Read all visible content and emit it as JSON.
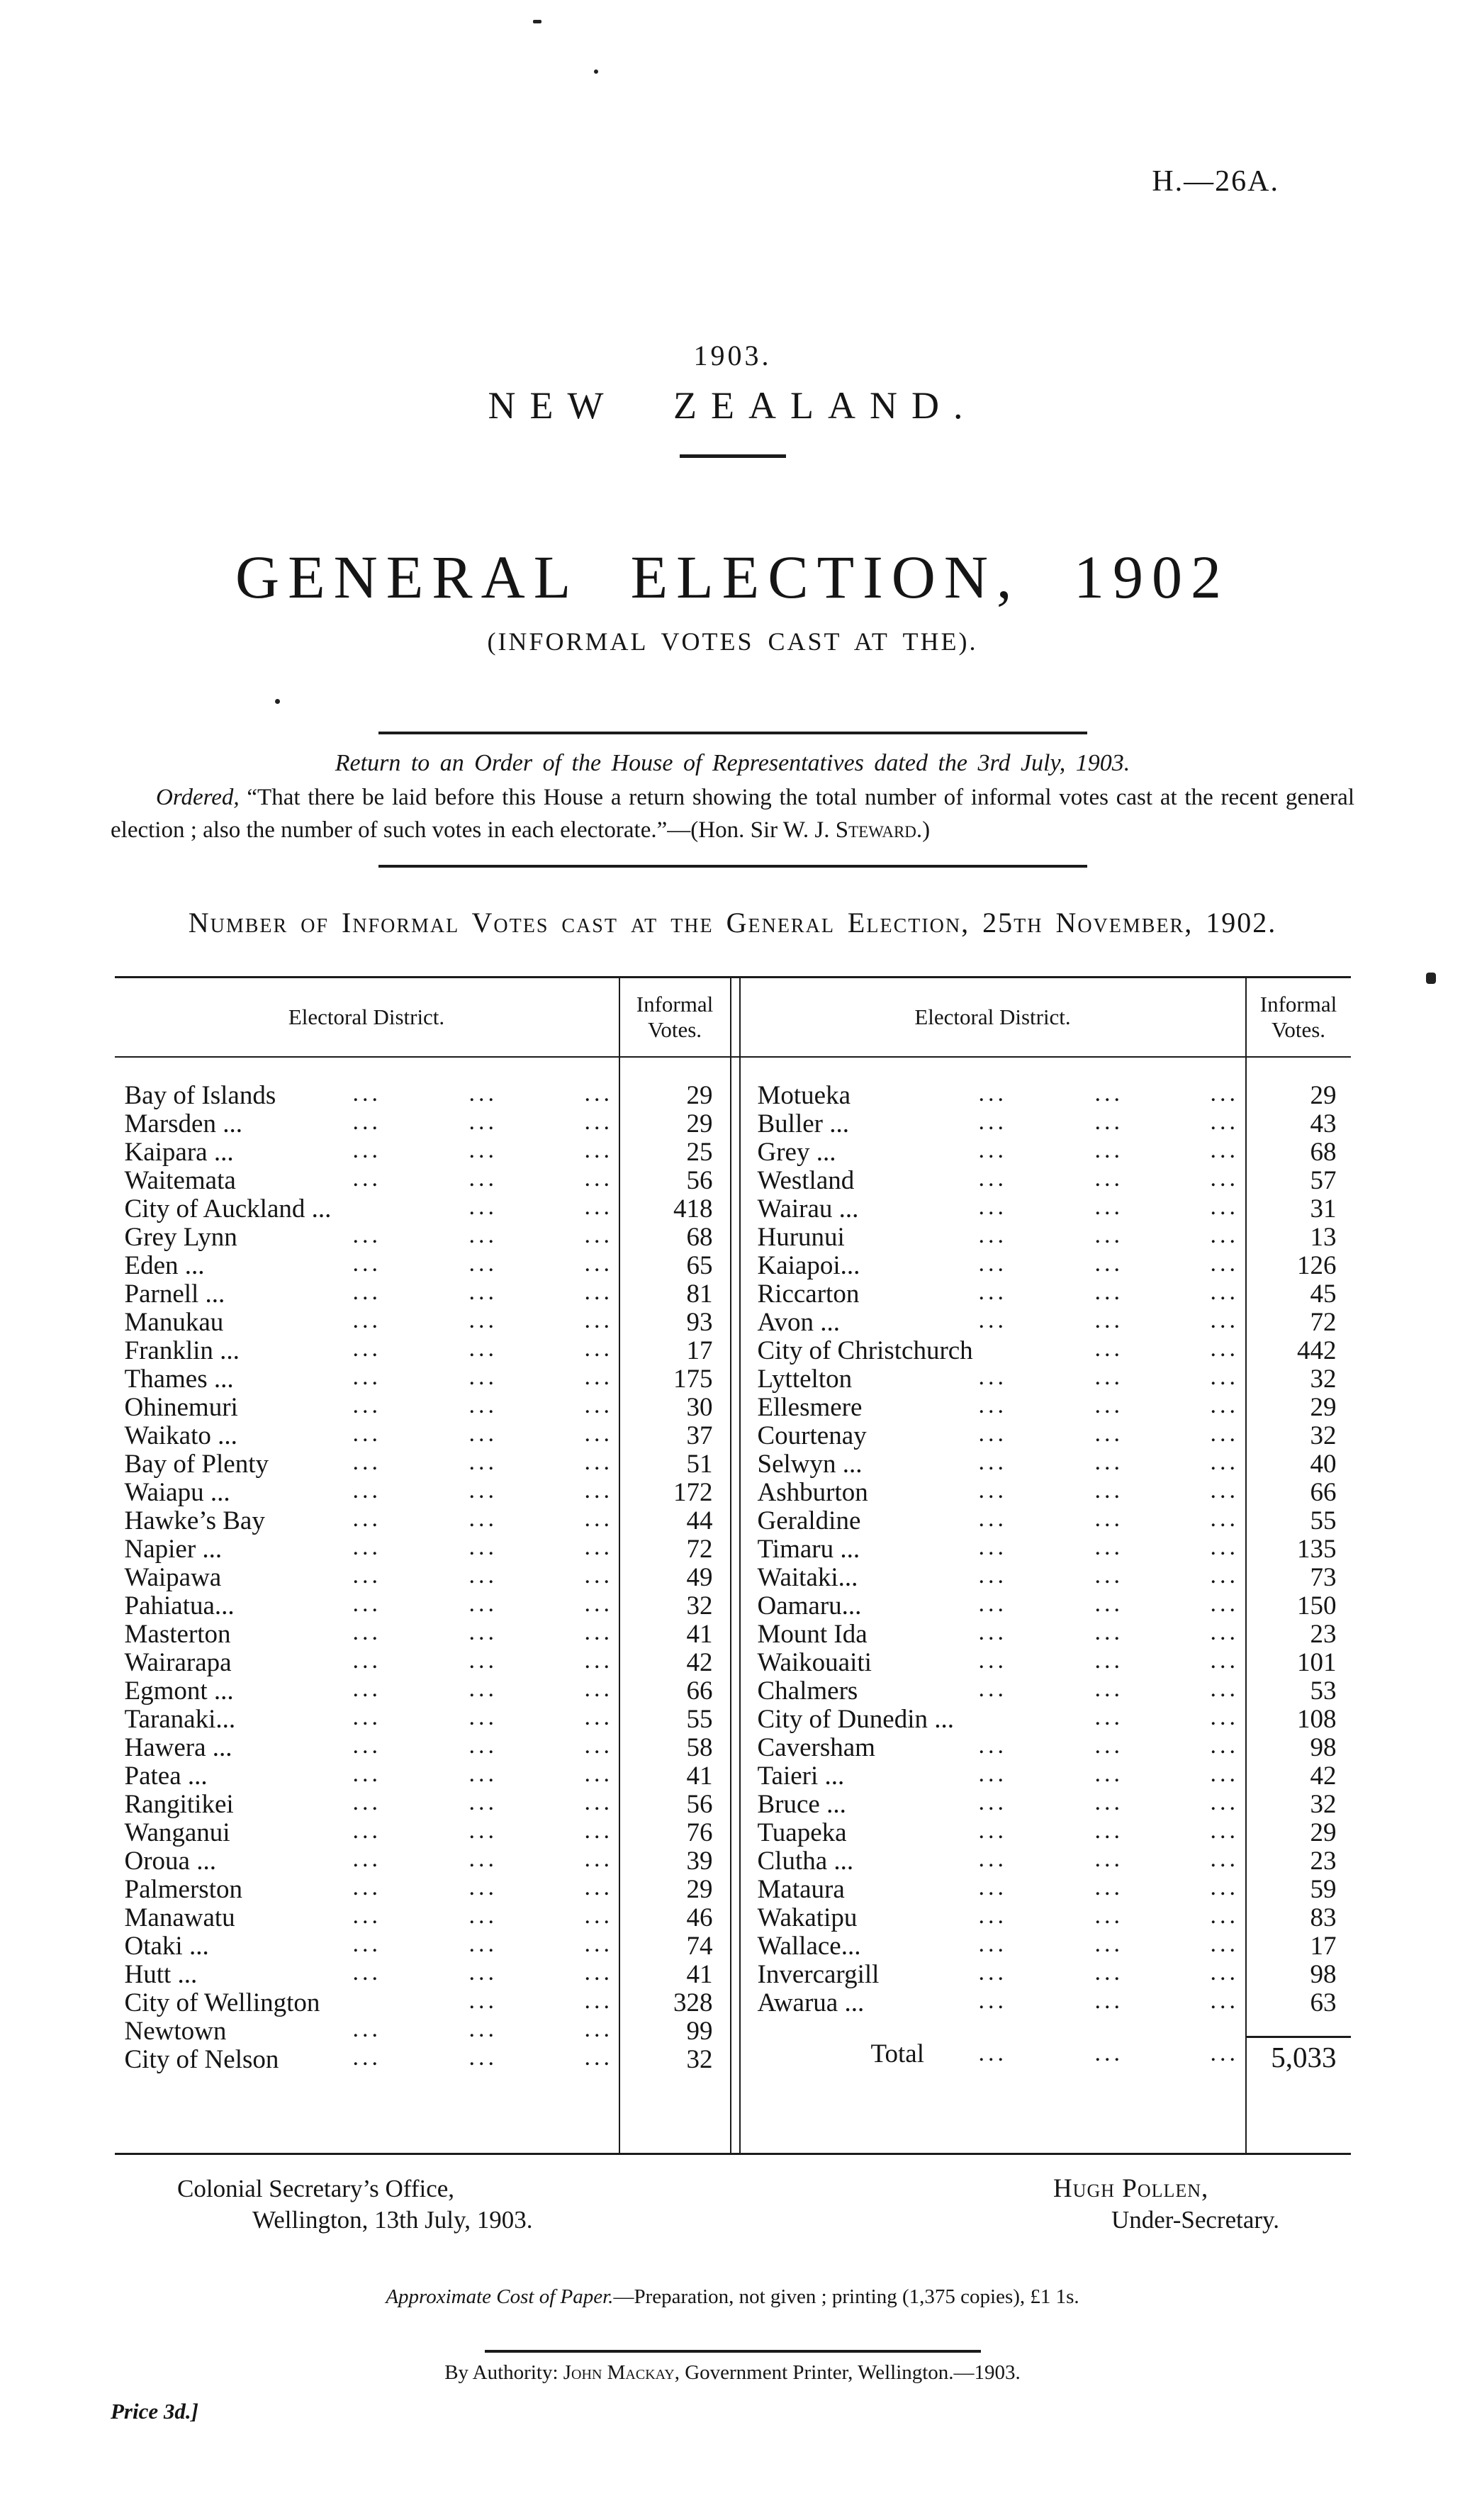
{
  "header": {
    "doc_ref": "H.—26A."
  },
  "masthead": {
    "year": "1903.",
    "country": "NEW ZEALAND.",
    "title": "GENERAL ELECTION, 1902",
    "subtitle": "(INFORMAL VOTES CAST AT THE)."
  },
  "order": {
    "return_line": "Return to an Order of the House of Representatives dated the 3rd July, 1903.",
    "ordered_label": "Ordered,",
    "ordered_text": " “That there be laid before this House a return showing the total number of informal votes cast at the recent general election ; also the number of such votes in each electorate.”—(Hon. Sir W. J. ",
    "steward_name": "Steward",
    "ordered_end": ".)"
  },
  "table": {
    "caption": "Number of Informal Votes cast at the General Election, 25th November, 1902.",
    "headers": [
      "Electoral District.",
      "Informal Votes.",
      "Electoral District.",
      "Informal Votes."
    ],
    "left_rows": [
      [
        "Bay of Islands",
        "29"
      ],
      [
        "Marsden ...",
        "29"
      ],
      [
        "Kaipara ...",
        "25"
      ],
      [
        "Waitemata",
        "56"
      ],
      [
        "City of Auckland ...",
        "418"
      ],
      [
        "Grey Lynn",
        "68"
      ],
      [
        "Eden ...",
        "65"
      ],
      [
        "Parnell ...",
        "81"
      ],
      [
        "Manukau",
        "93"
      ],
      [
        "Franklin ...",
        "17"
      ],
      [
        "Thames ...",
        "175"
      ],
      [
        "Ohinemuri",
        "30"
      ],
      [
        "Waikato ...",
        "37"
      ],
      [
        "Bay of Plenty",
        "51"
      ],
      [
        "Waiapu ...",
        "172"
      ],
      [
        "Hawke’s Bay",
        "44"
      ],
      [
        "Napier ...",
        "72"
      ],
      [
        "Waipawa",
        "49"
      ],
      [
        "Pahiatua...",
        "32"
      ],
      [
        "Masterton",
        "41"
      ],
      [
        "Wairarapa",
        "42"
      ],
      [
        "Egmont ...",
        "66"
      ],
      [
        "Taranaki...",
        "55"
      ],
      [
        "Hawera ...",
        "58"
      ],
      [
        "Patea ...",
        "41"
      ],
      [
        "Rangitikei",
        "56"
      ],
      [
        "Wanganui",
        "76"
      ],
      [
        "Oroua ...",
        "39"
      ],
      [
        "Palmerston",
        "29"
      ],
      [
        "Manawatu",
        "46"
      ],
      [
        "Otaki ...",
        "74"
      ],
      [
        "Hutt ...",
        "41"
      ],
      [
        "City of Wellington",
        "328"
      ],
      [
        "Newtown",
        "99"
      ],
      [
        "City of Nelson",
        "32"
      ]
    ],
    "right_rows": [
      [
        "Motueka",
        "29"
      ],
      [
        "Buller ...",
        "43"
      ],
      [
        "Grey ...",
        "68"
      ],
      [
        "Westland",
        "57"
      ],
      [
        "Wairau ...",
        "31"
      ],
      [
        "Hurunui",
        "13"
      ],
      [
        "Kaiapoi...",
        "126"
      ],
      [
        "Riccarton",
        "45"
      ],
      [
        "Avon ...",
        "72"
      ],
      [
        "City of Christchurch",
        "442"
      ],
      [
        "Lyttelton",
        "32"
      ],
      [
        "Ellesmere",
        "29"
      ],
      [
        "Courtenay",
        "32"
      ],
      [
        "Selwyn ...",
        "40"
      ],
      [
        "Ashburton",
        "66"
      ],
      [
        "Geraldine",
        "55"
      ],
      [
        "Timaru ...",
        "135"
      ],
      [
        "Waitaki...",
        "73"
      ],
      [
        "Oamaru...",
        "150"
      ],
      [
        "Mount Ida",
        "23"
      ],
      [
        "Waikouaiti",
        "101"
      ],
      [
        "Chalmers",
        "53"
      ],
      [
        "City of Dunedin ...",
        "108"
      ],
      [
        "Caversham",
        "98"
      ],
      [
        "Taieri ...",
        "42"
      ],
      [
        "Bruce ...",
        "32"
      ],
      [
        "Tuapeka",
        "29"
      ],
      [
        "Clutha ...",
        "23"
      ],
      [
        "Mataura",
        "59"
      ],
      [
        "Wakatipu",
        "83"
      ],
      [
        "Wallace...",
        "17"
      ],
      [
        "Invercargill",
        "98"
      ],
      [
        "Awarua ...",
        "63"
      ]
    ],
    "total_label": "Total",
    "total_value": "5,033"
  },
  "footer": {
    "office_line1": "Colonial Secretary’s Office,",
    "office_line2": "Wellington, 13th July, 1903.",
    "signature_name": "Hugh Pollen,",
    "signature_title": "Under-Secretary.",
    "cost_italic": "Approximate Cost of Paper.",
    "cost_rest": "—Preparation, not given ; printing (1,375 copies), £1 1s.",
    "authority_prefix": "By Authority: ",
    "authority_name": "John Mackay",
    "authority_rest": ", Government Printer, Wellington.—1903.",
    "price": "Price 3d.]"
  }
}
